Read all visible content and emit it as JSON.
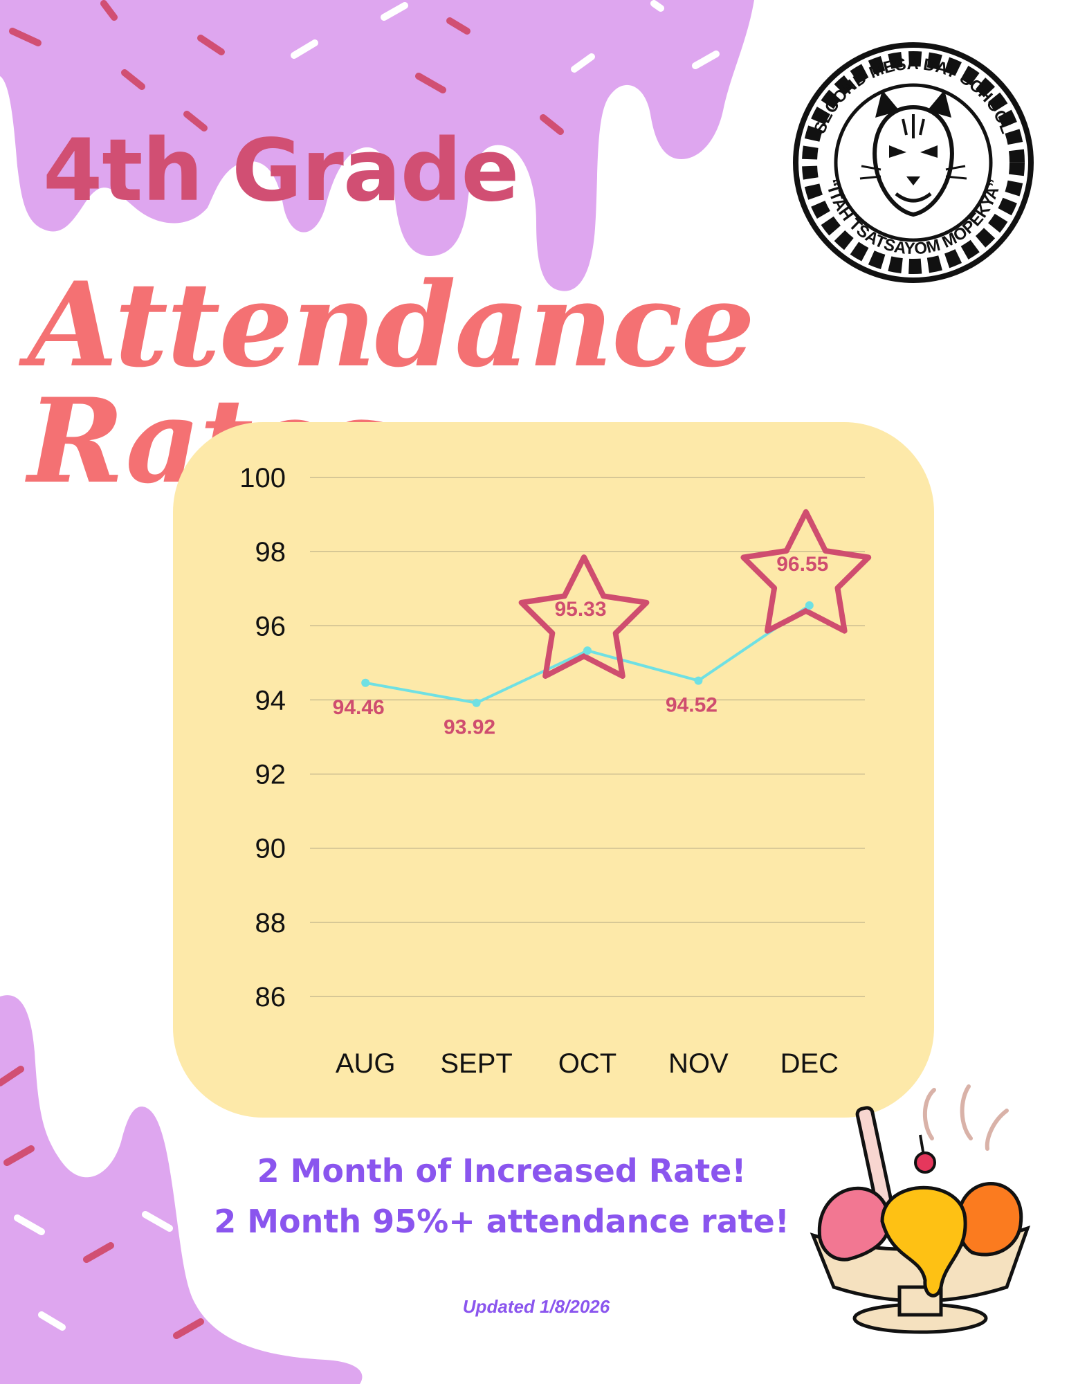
{
  "header": {
    "title_line1": "4th Grade",
    "title_line2": "Attendance Rates"
  },
  "logo": {
    "top_text": "SECOND MESA DAY SCHOOL",
    "bottom_text": "“ITAH TSATSAYOM MOPEKYA”",
    "icon": "bobcat-emblem-icon"
  },
  "chart_data": {
    "type": "line",
    "categories": [
      "AUG",
      "SEPT",
      "OCT",
      "NOV",
      "DEC"
    ],
    "values": [
      94.46,
      93.92,
      95.33,
      94.52,
      96.55
    ],
    "data_labels": [
      "94.46",
      "93.92",
      "95.33",
      "94.52",
      "96.55"
    ],
    "highlighted": [
      "OCT",
      "DEC"
    ],
    "ylim": [
      86,
      100
    ],
    "yticks": [
      "100",
      "98",
      "96",
      "94",
      "92",
      "90",
      "88",
      "86"
    ],
    "title": "",
    "xlabel": "",
    "ylabel": "",
    "grid": true,
    "line_color": "#6fe0e3",
    "label_color": "#cf4d6f",
    "highlight_star_color": "#cf4d6f"
  },
  "messages": {
    "line1": "2 Month of  Increased Rate!",
    "line2": "2 Month 95%+ attendance rate!"
  },
  "footer": {
    "updated": "Updated 1/8/2026"
  },
  "colors": {
    "drip": "#dea6ef",
    "sprinkle_pink": "#d14f73",
    "card": "#fde9a9",
    "accent_purple": "#8a55ee"
  }
}
